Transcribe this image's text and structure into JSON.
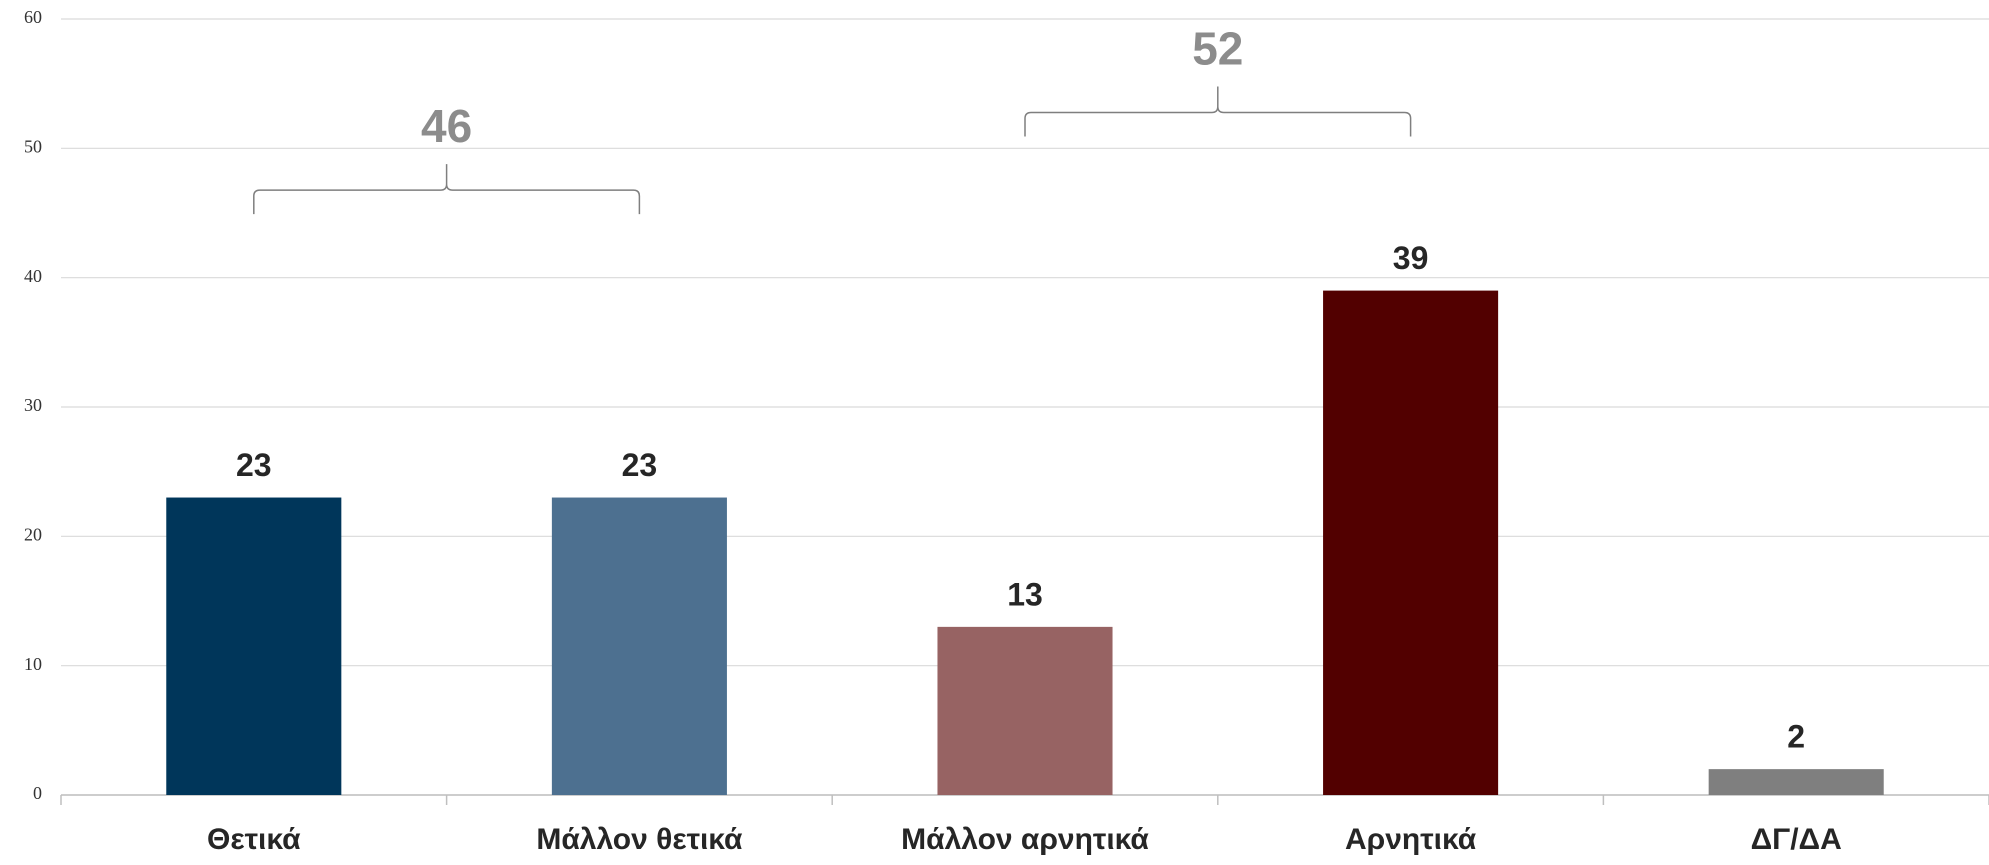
{
  "chart_data": {
    "type": "bar",
    "categories": [
      "Θετικά",
      "Μάλλον θετικά",
      "Μάλλον αρνητικά",
      "Αρνητικά",
      "ΔΓ/ΔΑ"
    ],
    "values": [
      23,
      23,
      13,
      39,
      2
    ],
    "colors": [
      "#00365a",
      "#4d7090",
      "#976363",
      "#520000",
      "#7f7f7f"
    ],
    "ylim": [
      0,
      60
    ],
    "yticks": [
      0,
      10,
      20,
      30,
      40,
      50,
      60
    ],
    "grid": true,
    "annotations": [
      {
        "value": 46,
        "span": [
          "Θετικά",
          "Μάλλον θετικά"
        ]
      },
      {
        "value": 52,
        "span": [
          "Μάλλον αρνητικά",
          "Αρνητικά"
        ]
      }
    ]
  }
}
